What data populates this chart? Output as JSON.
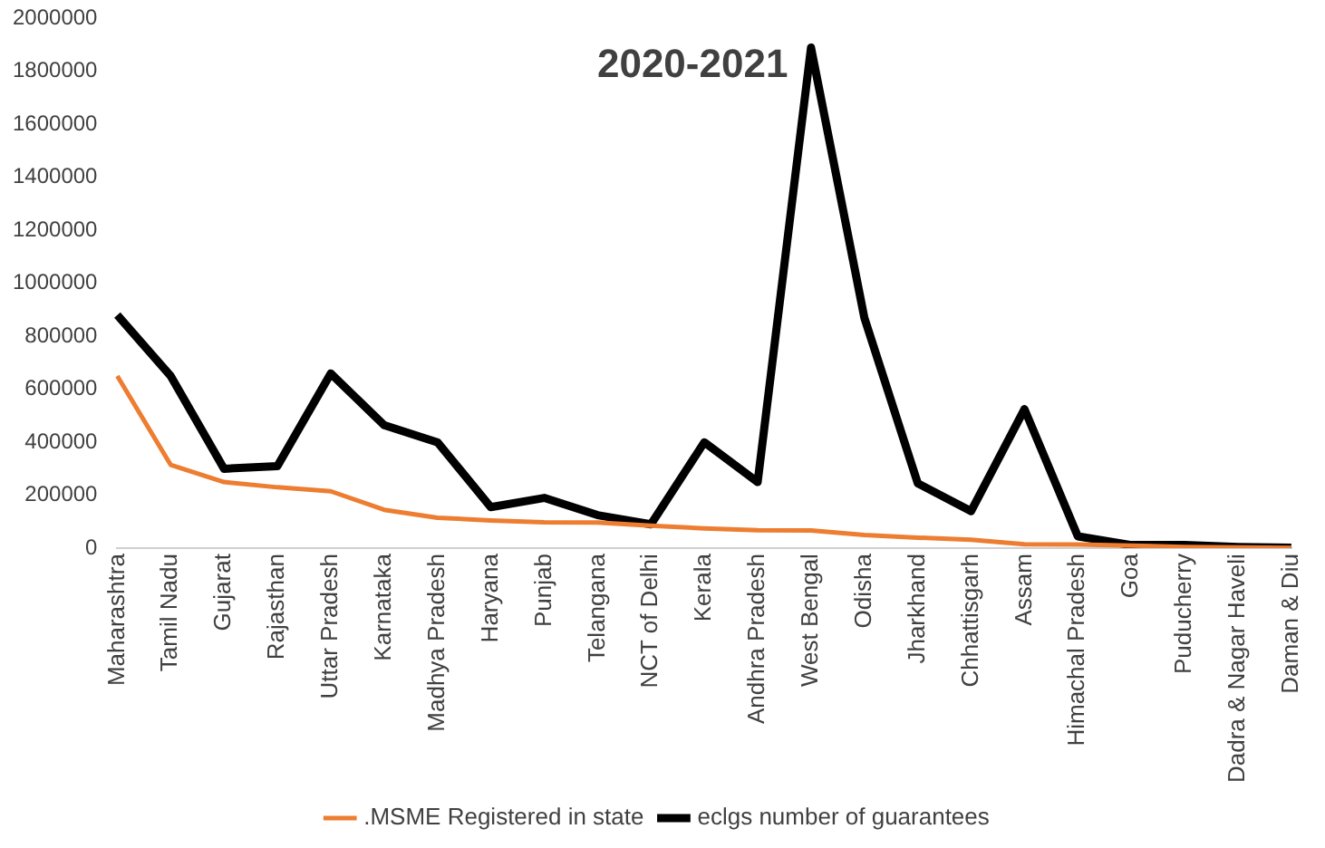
{
  "chart_data": {
    "type": "line",
    "title": "2020-2021",
    "categories": [
      "Maharashtra",
      "Tamil Nadu",
      "Gujarat",
      "Rajasthan",
      "Uttar Pradesh",
      "Karnataka",
      "Madhya Pradesh",
      "Haryana",
      "Punjab",
      "Telangana",
      "NCT of Delhi",
      "Kerala",
      "Andhra Pradesh",
      "West Bengal",
      "Odisha",
      "Jharkhand",
      "Chhattisgarh",
      "Assam",
      "Himachal Pradesh",
      "Goa",
      "Puducherry",
      "Dadra & Nagar Haveli",
      "Daman & Diu"
    ],
    "series": [
      {
        "name": ".MSME Registered in state",
        "color": "#ed7d31",
        "values": [
          650000,
          315000,
          250000,
          230000,
          215000,
          145000,
          115000,
          105000,
          98000,
          97000,
          85000,
          75000,
          68000,
          67000,
          50000,
          40000,
          32000,
          15000,
          14000,
          10000,
          5000,
          3000,
          1000
        ]
      },
      {
        "name": "eclgs number of guarantees",
        "color": "#000000",
        "values": [
          880000,
          650000,
          300000,
          310000,
          660000,
          465000,
          400000,
          155000,
          190000,
          125000,
          90000,
          400000,
          250000,
          1890000,
          870000,
          245000,
          140000,
          525000,
          45000,
          12000,
          12000,
          5000,
          2000
        ]
      }
    ],
    "ylim": [
      0,
      2000000
    ],
    "yticks": [
      0,
      200000,
      400000,
      600000,
      800000,
      1000000,
      1200000,
      1400000,
      1600000,
      1800000,
      2000000
    ],
    "grid": false,
    "legend": "bottom",
    "marker": "none",
    "line_style": "solid"
  }
}
